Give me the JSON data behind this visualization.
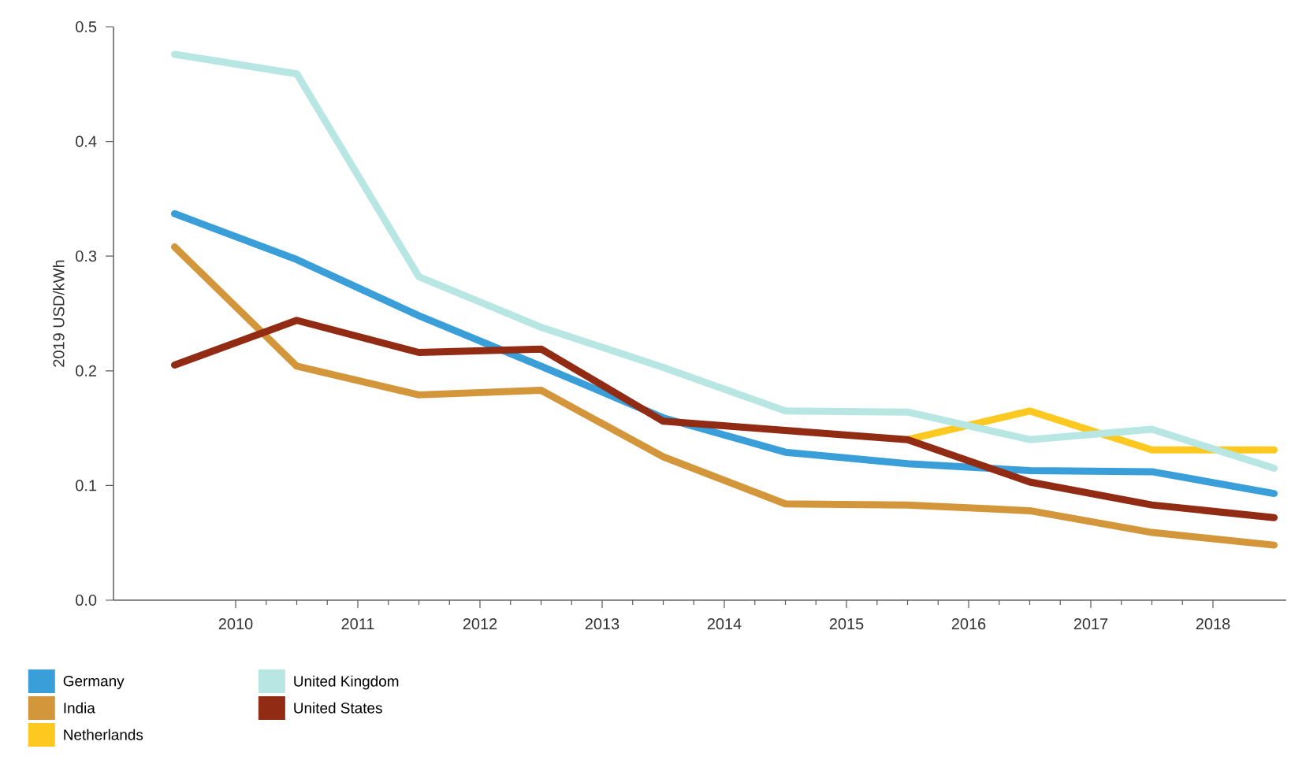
{
  "chart_data": {
    "type": "line",
    "ylabel": "2019 USD/kWh",
    "x": [
      2009.5,
      2010.5,
      2011.5,
      2012.5,
      2013.5,
      2014.5,
      2015.5,
      2016.5,
      2017.5,
      2018.5
    ],
    "xlim": [
      2009,
      2018.6
    ],
    "xticks": [
      2010,
      2011,
      2012,
      2013,
      2014,
      2015,
      2016,
      2017,
      2018
    ],
    "ylim": [
      0,
      0.5
    ],
    "yticks": [
      {
        "value": 0,
        "label": "0.0"
      },
      0.1,
      0.2,
      0.3,
      0.4,
      0.5
    ],
    "series": [
      {
        "name": "Germany",
        "color": "#3a9fd8",
        "values": [
          0.337,
          0.297,
          0.248,
          0.204,
          0.159,
          0.129,
          0.119,
          0.113,
          0.112,
          0.093
        ]
      },
      {
        "name": "India",
        "color": "#d4963b",
        "values": [
          0.308,
          0.204,
          0.179,
          0.183,
          0.125,
          0.084,
          0.083,
          0.078,
          0.059,
          0.048
        ]
      },
      {
        "name": "Netherlands",
        "color": "#fdc921",
        "values": [
          null,
          null,
          null,
          null,
          null,
          null,
          0.14,
          0.165,
          0.131,
          0.131
        ]
      },
      {
        "name": "United Kingdom",
        "color": "#b8e6e3",
        "values": [
          0.476,
          0.459,
          0.282,
          0.238,
          0.203,
          0.165,
          0.164,
          0.14,
          0.149,
          0.115
        ]
      },
      {
        "name": "United States",
        "color": "#922b14",
        "values": [
          0.205,
          0.244,
          0.216,
          0.219,
          0.156,
          0.148,
          0.14,
          0.103,
          0.083,
          0.072
        ]
      }
    ],
    "legend": "bottom",
    "grid": false,
    "marker": "none",
    "line_style": "solid"
  }
}
